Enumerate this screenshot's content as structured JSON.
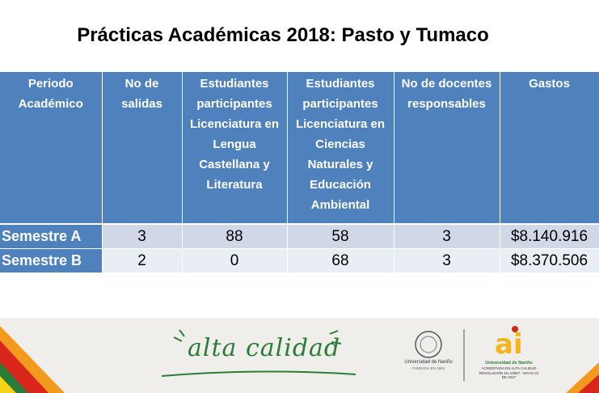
{
  "slide": {
    "title": "Prácticas Académicas 2018: Pasto y Tumaco"
  },
  "table": {
    "headers": [
      "Periodo Académico",
      "No de salidas",
      "Estudiantes participantes Licenciatura en Lengua Castellana y Literatura",
      "Estudiantes participantes Licenciatura en Ciencias Naturales y Educación Ambiental",
      "No de docentes responsables",
      "Gastos"
    ],
    "rows": [
      {
        "periodo": "Semestre A",
        "salidas": "3",
        "lengua": "88",
        "ciencias": "58",
        "docentes": "3",
        "gastos": "$8.140.916"
      },
      {
        "periodo": "Semestre B",
        "salidas": "2",
        "lengua": "0",
        "ciencias": "68",
        "docentes": "3",
        "gastos": "$8.370.506"
      }
    ]
  },
  "footer": {
    "slogan": "alta calidad",
    "university_logo": {
      "name": "Universidad de Nariño",
      "subtitle": "FUNDADA EN 1904"
    },
    "ai_logo": {
      "name": "Universidad de Nariño",
      "line1": "ACREDITADA EN ALTA CALIDAD",
      "line2": "RESOLUCIÓN No.10567 - MAYO 22 DE 2017"
    },
    "colors": {
      "green": "#2a7d38",
      "red": "#d9261c",
      "orange": "#f39a1e",
      "yellow": "#f7d417",
      "header_blue": "#4f81bd"
    }
  }
}
